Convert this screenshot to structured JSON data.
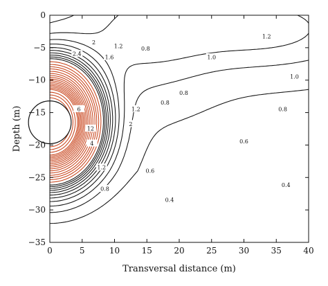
{
  "chart_data": {
    "type": "contour",
    "title": "",
    "xlabel": "Transversal distance (m)",
    "ylabel": "Depth (m)",
    "xlim": [
      0,
      40
    ],
    "ylim": [
      -35,
      0
    ],
    "x_ticks": [
      0,
      5,
      10,
      15,
      20,
      25,
      30,
      35,
      40
    ],
    "y_ticks": [
      0,
      -5,
      -10,
      -15,
      -20,
      -25,
      -30,
      -35
    ],
    "x_tick_labels": [
      "0",
      "5",
      "10",
      "15",
      "20",
      "25",
      "30",
      "35",
      "40"
    ],
    "y_tick_labels": [
      "0",
      "−5",
      "−10",
      "−15",
      "−20",
      "−25",
      "−30",
      "−35"
    ],
    "grid": false,
    "legend": "none",
    "obstacle": {
      "shape": "circle",
      "center": [
        0,
        -16.5
      ],
      "radius": 3.3
    },
    "colors": {
      "low_contours": "#111111",
      "high_contours": "#c8431a"
    },
    "labeled_levels": [
      {
        "label": "0.4",
        "x": 18.5,
        "y": -28.5
      },
      {
        "label": "0.4",
        "x": 36.5,
        "y": -26.2
      },
      {
        "label": "0.6",
        "x": 15.5,
        "y": -24
      },
      {
        "label": "0.6",
        "x": 30,
        "y": -19.5
      },
      {
        "label": "0.8",
        "x": 8.5,
        "y": -26.8
      },
      {
        "label": "0.8",
        "x": 17.8,
        "y": -13.5
      },
      {
        "label": "0.8",
        "x": 20.7,
        "y": -12
      },
      {
        "label": "0.8",
        "x": 36,
        "y": -14.5
      },
      {
        "label": "0.8",
        "x": 14.8,
        "y": -5.2
      },
      {
        "label": "1.0",
        "x": 25,
        "y": -6.5
      },
      {
        "label": "1.0",
        "x": 37.8,
        "y": -9.5
      },
      {
        "label": "1.2",
        "x": 33.5,
        "y": -3.3
      },
      {
        "label": "1.2",
        "x": 10.6,
        "y": -4.8
      },
      {
        "label": "1.2",
        "x": 8,
        "y": -23.5
      },
      {
        "label": "1.2",
        "x": 13.3,
        "y": -14.5
      },
      {
        "label": "1.6",
        "x": 9.2,
        "y": -6.5
      },
      {
        "label": "2",
        "x": 6.8,
        "y": -4.2
      },
      {
        "label": "2.4",
        "x": 4.2,
        "y": -6
      },
      {
        "label": "2",
        "x": 12.5,
        "y": -16.8
      },
      {
        "label": "4",
        "x": 6.5,
        "y": -19.8
      },
      {
        "label": "6",
        "x": 4.5,
        "y": -14.5
      },
      {
        "label": "12",
        "x": 6.3,
        "y": -17.5
      }
    ]
  }
}
